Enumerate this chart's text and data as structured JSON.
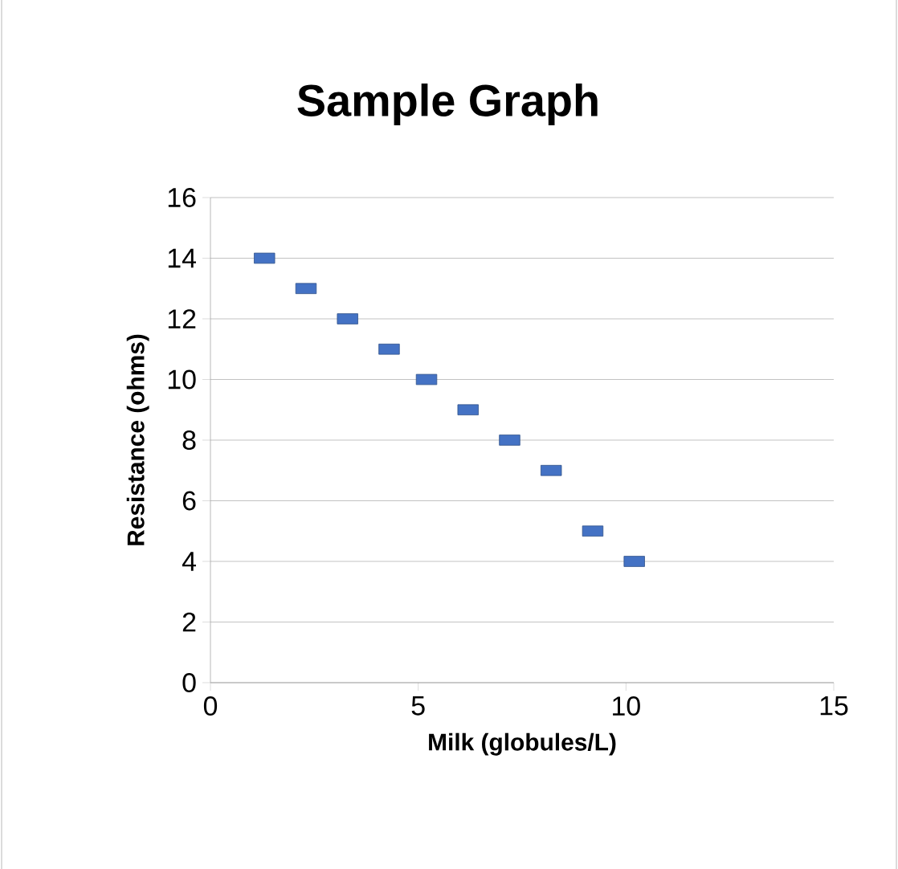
{
  "chart_data": {
    "type": "scatter",
    "title": "Sample Graph",
    "xlabel": "Milk (globules/L)",
    "ylabel": "Resistance (ohms)",
    "x": [
      1.3,
      2.3,
      3.3,
      4.3,
      5.2,
      6.2,
      7.2,
      8.2,
      9.2,
      10.2
    ],
    "series": [
      {
        "color": "#4472c4",
        "values": [
          14,
          13,
          12,
          11,
          10,
          9,
          8,
          7,
          5,
          4
        ]
      }
    ],
    "xlim": [
      0,
      15
    ],
    "xticks": [
      0,
      5,
      10,
      15
    ],
    "ylim": [
      0,
      16
    ],
    "yticks": [
      0,
      2,
      4,
      6,
      8,
      10,
      12,
      14,
      16
    ],
    "grid": "y",
    "marker": "square"
  }
}
